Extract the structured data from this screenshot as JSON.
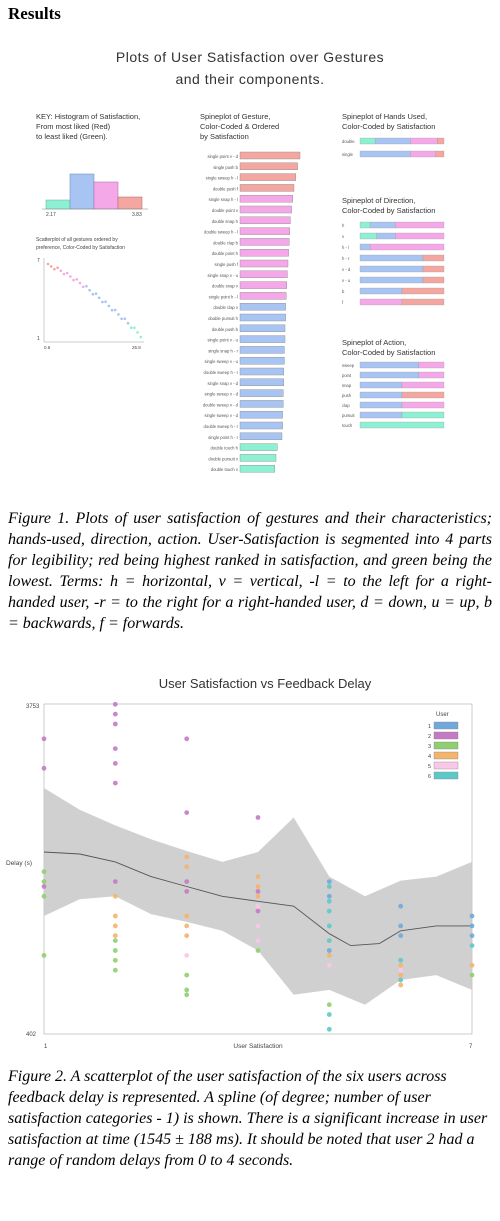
{
  "heading": "Results",
  "figure1": {
    "title_line1": "Plots of User Satisfaction over Gestures",
    "title_line2": "and their components.",
    "key_line1": "KEY: Histogram of Satisfaction,",
    "key_line2": "From most liked (Red)",
    "key_line3": "to least liked (Green).",
    "hist_left_label": "2.17",
    "hist_right_label": "3.83",
    "scatter_label_line1": "Scatterplot of all gestures ordered by",
    "scatter_label_line2": "preference, Color-Coded by Satisfaction",
    "scatter_y_label": "7",
    "scatter_y_label_bottom": "1",
    "scatter_x_left": "0.6",
    "scatter_x_right": "25.8",
    "gesture_title_line1": "Spineplot of Gesture,",
    "gesture_title_line2": "Color-Coded & Ordered",
    "gesture_title_line3": "by Satisfaction",
    "hands_title_line1": "Spineplot of Hands Used,",
    "hands_title_line2": "Color-Coded by Satisfaction",
    "direction_title_line1": "Spineplot of Direction,",
    "direction_title_line2": "Color-Coded by Satisfaction",
    "action_title_line1": "Spineplot of Action,",
    "action_title_line2": "Color-Coded by Satisfaction",
    "colors": {
      "red": "#f4a6a0",
      "pink": "#f5a8e8",
      "blue": "#a8c4f2",
      "green": "#8ef0d2"
    },
    "gestures": [
      {
        "label": "single point v - d",
        "color": "red",
        "len": 1.0
      },
      {
        "label": "single push b",
        "color": "red",
        "len": 0.96
      },
      {
        "label": "single sweep h - l",
        "color": "red",
        "len": 0.93
      },
      {
        "label": "double push f",
        "color": "red",
        "len": 0.9
      },
      {
        "label": "single snap h - l",
        "color": "pink",
        "len": 0.88
      },
      {
        "label": "double point v",
        "color": "pink",
        "len": 0.86
      },
      {
        "label": "double snap h",
        "color": "pink",
        "len": 0.84
      },
      {
        "label": "double sweep h - l",
        "color": "pink",
        "len": 0.83
      },
      {
        "label": "double clap b",
        "color": "pink",
        "len": 0.82
      },
      {
        "label": "double point h",
        "color": "pink",
        "len": 0.81
      },
      {
        "label": "single push f",
        "color": "pink",
        "len": 0.8
      },
      {
        "label": "single snap v - u",
        "color": "pink",
        "len": 0.79
      },
      {
        "label": "double snap v",
        "color": "pink",
        "len": 0.78
      },
      {
        "label": "single point h - l",
        "color": "pink",
        "len": 0.77
      },
      {
        "label": "double clap v",
        "color": "blue",
        "len": 0.76
      },
      {
        "label": "double pursuit h",
        "color": "blue",
        "len": 0.76
      },
      {
        "label": "double push b",
        "color": "blue",
        "len": 0.75
      },
      {
        "label": "single point v - u",
        "color": "blue",
        "len": 0.75
      },
      {
        "label": "single snap h - r",
        "color": "blue",
        "len": 0.74
      },
      {
        "label": "single sweep v - u",
        "color": "blue",
        "len": 0.74
      },
      {
        "label": "double sweep h - r",
        "color": "blue",
        "len": 0.73
      },
      {
        "label": "single snap v - d",
        "color": "blue",
        "len": 0.73
      },
      {
        "label": "single sweep v - d",
        "color": "blue",
        "len": 0.72
      },
      {
        "label": "double sweep v - d",
        "color": "blue",
        "len": 0.72
      },
      {
        "label": "single sweep v - d",
        "color": "blue",
        "len": 0.71
      },
      {
        "label": "double sweep h - r",
        "color": "blue",
        "len": 0.71
      },
      {
        "label": "single point h - r",
        "color": "blue",
        "len": 0.7
      },
      {
        "label": "double touch h",
        "color": "green",
        "len": 0.62
      },
      {
        "label": "double pursuit v",
        "color": "green",
        "len": 0.6
      },
      {
        "label": "double touch v",
        "color": "green",
        "len": 0.58
      }
    ],
    "hands": [
      {
        "label": "double",
        "segments": [
          [
            "green",
            0.18
          ],
          [
            "blue",
            0.42
          ],
          [
            "pink",
            0.32
          ],
          [
            "red",
            0.08
          ]
        ]
      },
      {
        "label": "single",
        "segments": [
          [
            "blue",
            0.6
          ],
          [
            "pink",
            0.3
          ],
          [
            "red",
            0.1
          ]
        ]
      }
    ],
    "directions": [
      {
        "label": "h",
        "segments": [
          [
            "green",
            0.12
          ],
          [
            "blue",
            0.3
          ],
          [
            "pink",
            0.58
          ]
        ]
      },
      {
        "label": "v",
        "segments": [
          [
            "green",
            0.2
          ],
          [
            "blue",
            0.22
          ],
          [
            "pink",
            0.58
          ]
        ]
      },
      {
        "label": "h - l",
        "segments": [
          [
            "blue",
            0.12
          ],
          [
            "pink",
            0.88
          ]
        ]
      },
      {
        "label": "h - r",
        "segments": [
          [
            "blue",
            0.75
          ],
          [
            "red",
            0.25
          ]
        ]
      },
      {
        "label": "v - d",
        "segments": [
          [
            "blue",
            0.75
          ],
          [
            "red",
            0.25
          ]
        ]
      },
      {
        "label": "v - u",
        "segments": [
          [
            "blue",
            0.75
          ],
          [
            "red",
            0.25
          ]
        ]
      },
      {
        "label": "b",
        "segments": [
          [
            "blue",
            0.5
          ],
          [
            "red",
            0.5
          ]
        ]
      },
      {
        "label": "f",
        "segments": [
          [
            "pink",
            0.5
          ],
          [
            "red",
            0.5
          ]
        ]
      }
    ],
    "actions": [
      {
        "label": "sweep",
        "segments": [
          [
            "blue",
            0.7
          ],
          [
            "pink",
            0.3
          ]
        ]
      },
      {
        "label": "point",
        "segments": [
          [
            "blue",
            0.7
          ],
          [
            "pink",
            0.3
          ]
        ]
      },
      {
        "label": "snap",
        "segments": [
          [
            "blue",
            0.5
          ],
          [
            "pink",
            0.5
          ]
        ]
      },
      {
        "label": "push",
        "segments": [
          [
            "blue",
            0.5
          ],
          [
            "red",
            0.5
          ]
        ]
      },
      {
        "label": "clap",
        "segments": [
          [
            "blue",
            0.5
          ],
          [
            "pink",
            0.5
          ]
        ]
      },
      {
        "label": "pursuit",
        "segments": [
          [
            "blue",
            0.5
          ],
          [
            "green",
            0.5
          ]
        ]
      },
      {
        "label": "touch",
        "segments": [
          [
            "green",
            1.0
          ]
        ]
      }
    ]
  },
  "caption1": "Figure 1. Plots of user satisfaction of gestures and their characteristics; hands-used, direction, action. User-Satisfaction is segmented into 4 parts for legibility; red being highest ranked in satisfaction, and green being the lowest. Terms: h = horizontal, v = vertical, -l = to the left for a right-handed user, -r = to the right for a right-handed user, d = down, u = up, b = backwards, f = forwards.",
  "figure2": {
    "chart_data": {
      "type": "scatter",
      "title": "User Satisfaction vs Feedback Delay",
      "xlabel": "User Satisfaction",
      "ylabel": "Delay (s)",
      "x_tick_left": "1",
      "x_tick_right": "7",
      "y_tick_top": "3753",
      "y_tick_bottom": "402",
      "xlim": [
        1,
        7
      ],
      "ylim": [
        402,
        3753
      ],
      "legend_title": "User",
      "legend_placement": "top-right",
      "series": [
        {
          "name": "1",
          "color": "#6fa8dc",
          "points": [
            [
              5,
              1950
            ],
            [
              5,
              1800
            ],
            [
              6,
              1700
            ],
            [
              6,
              1500
            ],
            [
              6,
              1400
            ],
            [
              7,
              1600
            ],
            [
              7,
              1500
            ],
            [
              7,
              1400
            ],
            [
              5,
              1250
            ]
          ]
        },
        {
          "name": "2",
          "color": "#c47bc4",
          "points": [
            [
              1,
              3400
            ],
            [
              1,
              3100
            ],
            [
              2,
              3750
            ],
            [
              2,
              3650
            ],
            [
              2,
              3550
            ],
            [
              2,
              3300
            ],
            [
              2,
              3150
            ],
            [
              2,
              2950
            ],
            [
              3,
              3400
            ],
            [
              3,
              2650
            ],
            [
              4,
              2600
            ],
            [
              3,
              1950
            ],
            [
              3,
              1850
            ],
            [
              4,
              1850
            ],
            [
              4,
              1650
            ],
            [
              2,
              1950
            ],
            [
              1,
              1900
            ]
          ]
        },
        {
          "name": "3",
          "color": "#8fcf6f",
          "points": [
            [
              1,
              2050
            ],
            [
              1,
              1950
            ],
            [
              1,
              1800
            ],
            [
              1,
              1200
            ],
            [
              2,
              1350
            ],
            [
              2,
              1250
            ],
            [
              2,
              1150
            ],
            [
              2,
              1050
            ],
            [
              3,
              1000
            ],
            [
              3,
              850
            ],
            [
              3,
              800
            ],
            [
              5,
              700
            ],
            [
              7,
              1000
            ],
            [
              4,
              1250
            ]
          ]
        },
        {
          "name": "4",
          "color": "#f5b36b",
          "points": [
            [
              2,
              1800
            ],
            [
              2,
              1600
            ],
            [
              2,
              1500
            ],
            [
              2,
              1400
            ],
            [
              3,
              2200
            ],
            [
              3,
              2100
            ],
            [
              3,
              1600
            ],
            [
              3,
              1500
            ],
            [
              3,
              1400
            ],
            [
              4,
              2000
            ],
            [
              4,
              1900
            ],
            [
              4,
              1800
            ],
            [
              5,
              1200
            ],
            [
              6,
              1100
            ],
            [
              6,
              1000
            ],
            [
              6,
              900
            ],
            [
              7,
              1100
            ]
          ]
        },
        {
          "name": "5",
          "color": "#f8c8e8",
          "points": [
            [
              4,
              1700
            ],
            [
              4,
              1500
            ],
            [
              4,
              1350
            ],
            [
              3,
              1200
            ],
            [
              5,
              1100
            ],
            [
              6,
              1050
            ]
          ]
        },
        {
          "name": "6",
          "color": "#5cc9c9",
          "points": [
            [
              5,
              1900
            ],
            [
              5,
              1750
            ],
            [
              5,
              1650
            ],
            [
              5,
              1500
            ],
            [
              5,
              1350
            ],
            [
              5,
              600
            ],
            [
              5,
              450
            ],
            [
              6,
              1150
            ],
            [
              6,
              950
            ],
            [
              7,
              1300
            ]
          ]
        }
      ],
      "spline": [
        [
          1,
          2250
        ],
        [
          1.5,
          2230
        ],
        [
          2,
          2150
        ],
        [
          2.5,
          2000
        ],
        [
          3,
          1900
        ],
        [
          3.5,
          1800
        ],
        [
          4,
          1750
        ],
        [
          4.5,
          1700
        ],
        [
          5,
          1420
        ],
        [
          5.3,
          1300
        ],
        [
          5.7,
          1320
        ],
        [
          6,
          1450
        ],
        [
          6.5,
          1500
        ],
        [
          7,
          1500
        ]
      ],
      "band_upper": [
        [
          1,
          2900
        ],
        [
          1.5,
          2680
        ],
        [
          2,
          2520
        ],
        [
          2.5,
          2380
        ],
        [
          3,
          2260
        ],
        [
          3.5,
          2150
        ],
        [
          4,
          2250
        ],
        [
          4.5,
          2600
        ],
        [
          5,
          2000
        ],
        [
          5.5,
          1800
        ],
        [
          6,
          1960
        ],
        [
          6.5,
          2000
        ],
        [
          7,
          2150
        ]
      ],
      "band_lower": [
        [
          1,
          1600
        ],
        [
          1.5,
          1770
        ],
        [
          2,
          1800
        ],
        [
          2.5,
          1620
        ],
        [
          3,
          1540
        ],
        [
          3.5,
          1450
        ],
        [
          4,
          1250
        ],
        [
          4.5,
          800
        ],
        [
          5,
          850
        ],
        [
          5.5,
          700
        ],
        [
          6,
          950
        ],
        [
          6.5,
          1000
        ],
        [
          7,
          850
        ]
      ]
    }
  },
  "caption2": "Figure 2. A scatterplot of the user satisfaction of the six users across feedback delay is represented. A spline (of degree; number of user satisfaction categories - 1) is shown. There is a significant increase in user satisfaction at time (1545 ± 188 ms). It should be noted that user 2 had a range of random delays from 0 to 4 seconds."
}
